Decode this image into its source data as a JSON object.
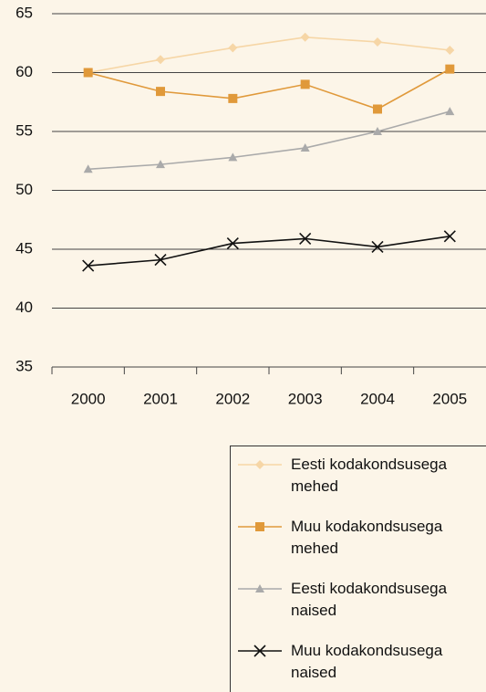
{
  "chart_data": {
    "type": "line",
    "categories": [
      "2000",
      "2001",
      "2002",
      "2003",
      "2004",
      "2005"
    ],
    "series": [
      {
        "name": "Eesti kodakondsusega mehed",
        "color": "#f6d6a6",
        "marker": "diamond",
        "values": [
          60.0,
          61.1,
          62.1,
          63.0,
          62.6,
          61.9
        ]
      },
      {
        "name": "Muu kodakondsusega mehed",
        "color": "#e0993a",
        "marker": "square",
        "values": [
          60.0,
          58.4,
          57.8,
          59.0,
          56.9,
          60.3
        ]
      },
      {
        "name": "Eesti kodakondsusega naised",
        "color": "#aaaaaa",
        "marker": "triangle",
        "values": [
          51.8,
          52.2,
          52.8,
          53.6,
          55.0,
          56.7
        ]
      },
      {
        "name": "Muu kodakondsusega naised",
        "color": "#111111",
        "marker": "x",
        "values": [
          43.6,
          44.1,
          45.5,
          45.9,
          45.2,
          46.1
        ]
      }
    ],
    "ylim": [
      35,
      65
    ],
    "yticks": [
      35,
      40,
      45,
      50,
      55,
      60,
      65
    ],
    "grid": true
  }
}
